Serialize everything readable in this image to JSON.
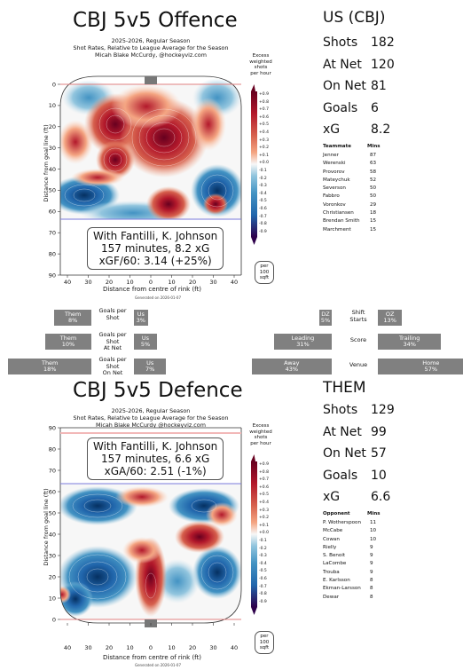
{
  "offence": {
    "title": "CBJ 5v5 Offence",
    "subtitle_lines": [
      "2025-2026, Regular Season",
      "Shot Rates, Relative to League Average for the Season",
      "Micah Blake McCurdy, @hockeyviz.com"
    ],
    "info_lines": [
      "With Fantilli, K. Johnson",
      "157 minutes, 8.2 xG",
      "xGF/60: 3.14 (+25%)"
    ],
    "ylabel": "Distance from goal line (ft)",
    "xlabel": "Distance from centre of rink (ft)",
    "yticks": [
      "0",
      "10",
      "20",
      "30",
      "40",
      "50",
      "60",
      "70",
      "80",
      "90"
    ],
    "xticks": [
      "40",
      "30",
      "20",
      "10",
      "0",
      "10",
      "20",
      "30",
      "40"
    ],
    "generated": "Generated on 2026-01-07"
  },
  "defence": {
    "title": "CBJ 5v5 Defence",
    "subtitle_lines": [
      "2025-2026, Regular Season",
      "Shot Rates, Relative to League Average for the Season",
      "Micah Blake McCurdy @hockeyviz.com"
    ],
    "info_lines": [
      "With Fantilli, K. Johnson",
      "157 minutes, 6.6 xG",
      "xGA/60: 2.51 (-1%)"
    ],
    "ylabel": "Distance from goal line (ft)",
    "xlabel": "Distance from centre of rink (ft)",
    "yticks": [
      "90",
      "80",
      "70",
      "60",
      "50",
      "40",
      "30",
      "20",
      "10",
      "0"
    ],
    "xticks": [
      "40",
      "30",
      "20",
      "10",
      "0",
      "10",
      "20",
      "30",
      "40"
    ],
    "generated": "Generated on 2026-01-07"
  },
  "colorbar": {
    "title_lines": [
      "Excess",
      "weighted",
      "shots",
      "per hour"
    ],
    "ticks": [
      "+0.9",
      "+0.8",
      "+0.7",
      "+0.6",
      "+0.5",
      "+0.4",
      "+0.3",
      "+0.2",
      "+0.1",
      "+0.0",
      "-0.1",
      "-0.2",
      "-0.3",
      "-0.4",
      "-0.5",
      "-0.6",
      "-0.7",
      "-0.8",
      "-0.9"
    ],
    "per_lines": [
      "per",
      "100",
      "sqft"
    ],
    "colors": {
      "max": "#67001f",
      "mid_high": "#d6604d",
      "zero": "#f7f7f7",
      "mid_low": "#4393c3",
      "min": "#2d004b"
    }
  },
  "us": {
    "team": "US (CBJ)",
    "stats": [
      {
        "label": "Shots",
        "value": "182"
      },
      {
        "label": "At Net",
        "value": "120"
      },
      {
        "label": "On Net",
        "value": "81"
      },
      {
        "label": "Goals",
        "value": "6"
      },
      {
        "label": "xG",
        "value": "8.2"
      }
    ],
    "table_headers": [
      "Teammate",
      "Mins"
    ],
    "rows": [
      {
        "name": "Jenner",
        "mins": "87"
      },
      {
        "name": "Werenski",
        "mins": "63"
      },
      {
        "name": "Provorov",
        "mins": "58"
      },
      {
        "name": "Mateychuk",
        "mins": "52"
      },
      {
        "name": "Severson",
        "mins": "50"
      },
      {
        "name": "Fabbro",
        "mins": "50"
      },
      {
        "name": "Voronkov",
        "mins": "29"
      },
      {
        "name": "Christiansen",
        "mins": "18"
      },
      {
        "name": "Brendan Smith",
        "mins": "15"
      },
      {
        "name": "Marchment",
        "mins": "15"
      }
    ]
  },
  "them": {
    "team": "THEM",
    "stats": [
      {
        "label": "Shots",
        "value": "129"
      },
      {
        "label": "At Net",
        "value": "99"
      },
      {
        "label": "On Net",
        "value": "57"
      },
      {
        "label": "Goals",
        "value": "10"
      },
      {
        "label": "xG",
        "value": "6.6"
      }
    ],
    "table_headers": [
      "Opponent",
      "Mins"
    ],
    "rows": [
      {
        "name": "P. Wotherspoon",
        "mins": "11"
      },
      {
        "name": "McCabe",
        "mins": "10"
      },
      {
        "name": "Cowan",
        "mins": "10"
      },
      {
        "name": "Rielly",
        "mins": "9"
      },
      {
        "name": "S. Benoit",
        "mins": "9"
      },
      {
        "name": "LaCombe",
        "mins": "9"
      },
      {
        "name": "Trouba",
        "mins": "9"
      },
      {
        "name": "E. Karlsson",
        "mins": "8"
      },
      {
        "name": "Ekman-Larsson",
        "mins": "8"
      },
      {
        "name": "Dewar",
        "mins": "8"
      }
    ]
  },
  "ratios": [
    {
      "label_lines": [
        "Goals per",
        "Shot"
      ],
      "them": "Them 8%",
      "us": "Us 3%",
      "them_frac": 0.08,
      "us_frac": 0.03
    },
    {
      "label_lines": [
        "Goals per",
        "Shot",
        "At Net"
      ],
      "them": "Them 10%",
      "us": "Us 5%",
      "them_frac": 0.1,
      "us_frac": 0.05
    },
    {
      "label_lines": [
        "Goals per",
        "Shot",
        "On Net"
      ],
      "them": "Them 18%",
      "us": "Us 7%",
      "them_frac": 0.18,
      "us_frac": 0.07
    }
  ],
  "splits": [
    {
      "label_lines": [
        "Shift",
        "Starts"
      ],
      "left": "DZ 5%",
      "right": "OZ 13%",
      "left_frac": 0.05,
      "right_frac": 0.13
    },
    {
      "label_lines": [
        "Score"
      ],
      "left": "Leading 31%",
      "right": "Trailing 34%",
      "left_frac": 0.31,
      "right_frac": 0.34
    },
    {
      "label_lines": [
        "Venue"
      ],
      "left": "Away 43%",
      "right": "Home 57%",
      "left_frac": 0.43,
      "right_frac": 0.57
    }
  ]
}
